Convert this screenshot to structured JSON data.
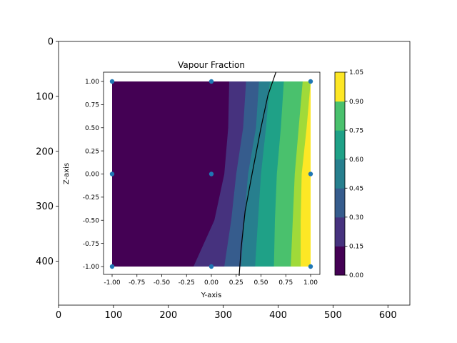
{
  "chart_data": [
    {
      "type": "image",
      "title": "",
      "xlabel": "",
      "ylabel": "",
      "xlim": [
        0,
        640
      ],
      "ylim": [
        480,
        0
      ],
      "y_inverted": true,
      "xticks": [
        0,
        100,
        200,
        300,
        400,
        500,
        600
      ],
      "yticks": [
        0,
        100,
        200,
        300,
        400
      ],
      "xtick_labels": [
        "0",
        "100",
        "200",
        "300",
        "400",
        "500",
        "600"
      ],
      "ytick_labels": [
        "0",
        "100",
        "200",
        "300",
        "400"
      ],
      "grid": false
    },
    {
      "type": "contour",
      "title": "Vapour Fraction",
      "xlabel": "Y-axis",
      "ylabel": "Z-axis",
      "xlim": [
        -1.0,
        1.0
      ],
      "ylim": [
        -1.0,
        1.0
      ],
      "xticks": [
        -1.0,
        -0.75,
        -0.5,
        -0.25,
        0.0,
        0.25,
        0.5,
        0.75,
        1.0
      ],
      "yticks": [
        -1.0,
        -0.75,
        -0.5,
        -0.25,
        0.0,
        0.25,
        0.5,
        0.75,
        1.0
      ],
      "xtick_labels": [
        "-1.00",
        "-0.75",
        "-0.50",
        "-0.25",
        "0.00",
        "0.25",
        "0.50",
        "0.75",
        "1.00"
      ],
      "ytick_labels": [
        "-1.00",
        "-0.75",
        "-0.50",
        "-0.25",
        "0.00",
        "0.25",
        "0.50",
        "0.75",
        "1.00"
      ],
      "grid": false,
      "colormap": "viridis",
      "levels": [
        0.0,
        0.15,
        0.3,
        0.45,
        0.6,
        0.75,
        0.9,
        1.05
      ],
      "level_colors": [
        "#440154",
        "#46327e",
        "#365c8d",
        "#277f8e",
        "#1fa187",
        "#4ac16d",
        "#a0da39",
        "#fde725"
      ],
      "contour_boundaries": [
        {
          "level": 0.15,
          "points": [
            [
              -0.18,
              -1.0
            ],
            [
              0.03,
              -0.5
            ],
            [
              0.13,
              0.0
            ],
            [
              0.17,
              0.5
            ],
            [
              0.18,
              1.0
            ]
          ]
        },
        {
          "level": 0.3,
          "points": [
            [
              0.13,
              -1.0
            ],
            [
              0.2,
              -0.5
            ],
            [
              0.25,
              0.0
            ],
            [
              0.32,
              0.5
            ],
            [
              0.35,
              1.0
            ]
          ]
        },
        {
          "level": 0.45,
          "points": [
            [
              0.3,
              -1.0
            ],
            [
              0.33,
              -0.5
            ],
            [
              0.37,
              0.0
            ],
            [
              0.45,
              0.5
            ],
            [
              0.48,
              1.0
            ]
          ]
        },
        {
          "level": 0.6,
          "points": [
            [
              0.44,
              -1.0
            ],
            [
              0.47,
              -0.5
            ],
            [
              0.5,
              0.0
            ],
            [
              0.55,
              0.5
            ],
            [
              0.59,
              1.0
            ]
          ]
        },
        {
          "level": 0.75,
          "points": [
            [
              0.63,
              -1.0
            ],
            [
              0.64,
              -0.5
            ],
            [
              0.66,
              0.0
            ],
            [
              0.7,
              0.5
            ],
            [
              0.73,
              1.0
            ]
          ]
        },
        {
          "level": 0.9,
          "points": [
            [
              0.8,
              -1.0
            ],
            [
              0.82,
              -0.5
            ],
            [
              0.84,
              0.0
            ],
            [
              0.88,
              0.5
            ],
            [
              0.92,
              1.0
            ]
          ]
        },
        {
          "level": 1.05,
          "points": [
            [
              0.9,
              -1.0
            ],
            [
              0.9,
              -0.5
            ],
            [
              0.91,
              0.0
            ],
            [
              0.96,
              0.5
            ],
            [
              1.0,
              1.0
            ]
          ]
        }
      ],
      "interface_line": {
        "color": "#000000",
        "points": [
          [
            0.28,
            -1.1
          ],
          [
            0.3,
            -0.8
          ],
          [
            0.34,
            -0.4
          ],
          [
            0.41,
            0.0
          ],
          [
            0.5,
            0.5
          ],
          [
            0.57,
            0.85
          ],
          [
            0.65,
            1.1
          ]
        ]
      },
      "markers": {
        "color": "#1f77b4",
        "points": [
          [
            -1.0,
            1.0
          ],
          [
            0.0,
            1.0
          ],
          [
            1.0,
            1.0
          ],
          [
            -1.0,
            0.0
          ],
          [
            0.0,
            0.0
          ],
          [
            1.0,
            0.0
          ],
          [
            -1.0,
            -1.0
          ],
          [
            0.0,
            -1.0
          ],
          [
            1.0,
            -1.0
          ]
        ]
      }
    },
    {
      "type": "colorbar",
      "ticks": [
        0.0,
        0.15,
        0.3,
        0.45,
        0.6,
        0.75,
        0.9,
        1.05
      ],
      "tick_labels": [
        "0.00",
        "0.15",
        "0.30",
        "0.45",
        "0.60",
        "0.75",
        "0.90",
        "1.05"
      ],
      "colors": [
        "#440154",
        "#46327e",
        "#365c8d",
        "#277f8e",
        "#1fa187",
        "#4ac16d",
        "#a0da39",
        "#fde725"
      ]
    }
  ]
}
